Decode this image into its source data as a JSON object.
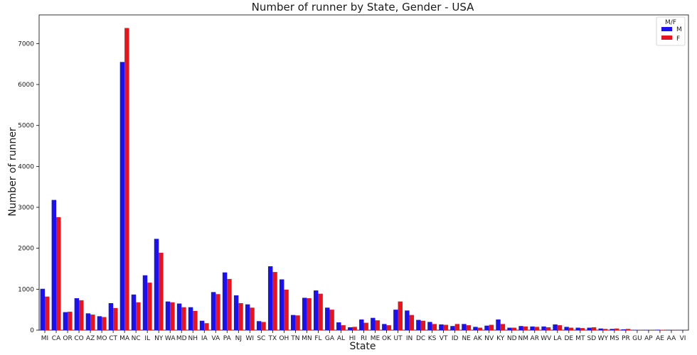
{
  "chart_data": {
    "type": "bar",
    "title": "Number of runner by State, Gender - USA",
    "xlabel": "State",
    "ylabel": "Number of runner",
    "ylim": [
      0,
      7700
    ],
    "yticks": [
      0,
      1000,
      2000,
      3000,
      4000,
      5000,
      6000,
      7000
    ],
    "categories": [
      "MI",
      "CA",
      "OR",
      "CO",
      "AZ",
      "MO",
      "CT",
      "MA",
      "NC",
      "IL",
      "NY",
      "WA",
      "MD",
      "NH",
      "IA",
      "VA",
      "PA",
      "NJ",
      "WI",
      "SC",
      "TX",
      "OH",
      "TN",
      "MN",
      "FL",
      "GA",
      "AL",
      "HI",
      "RI",
      "ME",
      "OK",
      "UT",
      "IN",
      "DC",
      "KS",
      "VT",
      "ID",
      "NE",
      "AK",
      "NV",
      "KY",
      "ND",
      "NM",
      "AR",
      "WV",
      "LA",
      "DE",
      "MT",
      "SD",
      "WY",
      "MS",
      "PR",
      "GU",
      "AP",
      "AE",
      "AA",
      "VI"
    ],
    "series": [
      {
        "name": "M",
        "color": "#1a10f0",
        "values": [
          1010,
          3180,
          440,
          780,
          410,
          340,
          660,
          6550,
          870,
          1340,
          2230,
          700,
          650,
          560,
          230,
          930,
          1410,
          850,
          630,
          220,
          1560,
          1240,
          370,
          790,
          970,
          550,
          190,
          70,
          260,
          300,
          150,
          500,
          480,
          250,
          200,
          140,
          100,
          150,
          80,
          110,
          260,
          60,
          100,
          90,
          90,
          140,
          80,
          60,
          60,
          40,
          30,
          20,
          5,
          5,
          10,
          3,
          2
        ]
      },
      {
        "name": "F",
        "color": "#e8141c",
        "values": [
          820,
          2760,
          450,
          730,
          380,
          320,
          540,
          7380,
          680,
          1160,
          1890,
          680,
          560,
          470,
          170,
          880,
          1250,
          660,
          550,
          200,
          1420,
          990,
          360,
          780,
          890,
          500,
          120,
          80,
          180,
          240,
          120,
          700,
          370,
          230,
          150,
          130,
          150,
          120,
          60,
          130,
          150,
          60,
          90,
          80,
          70,
          120,
          60,
          50,
          70,
          30,
          40,
          30,
          2,
          2,
          8,
          2,
          1
        ]
      }
    ],
    "legend": {
      "title": "M/F",
      "position": "top-right"
    },
    "grid": false
  }
}
